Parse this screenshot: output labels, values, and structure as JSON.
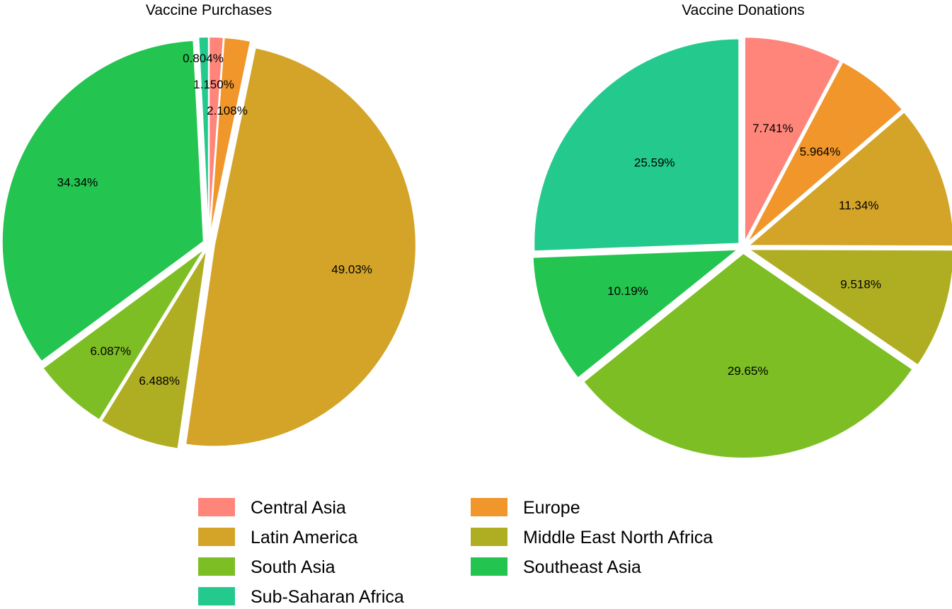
{
  "chart_data": [
    {
      "type": "pie",
      "title": "Vaccine Purchases",
      "categories": [
        "Central Asia",
        "Europe",
        "Latin America",
        "Middle East North Africa",
        "South Asia",
        "Southeast Asia",
        "Sub-Saharan Africa"
      ],
      "values": [
        1.15,
        2.108,
        49.03,
        6.488,
        6.087,
        34.34,
        0.804
      ],
      "labels": [
        "1.150%",
        "2.108%",
        "49.03%",
        "6.488%",
        "6.087%",
        "34.34%",
        "0.804%"
      ]
    },
    {
      "type": "pie",
      "title": "Vaccine Donations",
      "categories": [
        "Central Asia",
        "Europe",
        "Latin America",
        "Middle East North Africa",
        "South Asia",
        "Southeast Asia",
        "Sub-Saharan Africa"
      ],
      "values": [
        7.741,
        5.964,
        11.34,
        9.518,
        29.65,
        10.19,
        25.59
      ],
      "labels": [
        "7.741%",
        "5.964%",
        "11.34%",
        "9.518%",
        "29.65%",
        "10.19%",
        "25.59%"
      ]
    }
  ],
  "legend": {
    "placement": "bottom",
    "items": [
      {
        "label": "Central Asia",
        "color": "#FF857A"
      },
      {
        "label": "Europe",
        "color": "#F0962A"
      },
      {
        "label": "Latin America",
        "color": "#D3A428"
      },
      {
        "label": "Middle East North Africa",
        "color": "#AFAE23"
      },
      {
        "label": "South Asia",
        "color": "#7DBE24"
      },
      {
        "label": "Southeast Asia",
        "color": "#23C44F"
      },
      {
        "label": "Sub-Saharan Africa",
        "color": "#24CA8D"
      }
    ]
  }
}
